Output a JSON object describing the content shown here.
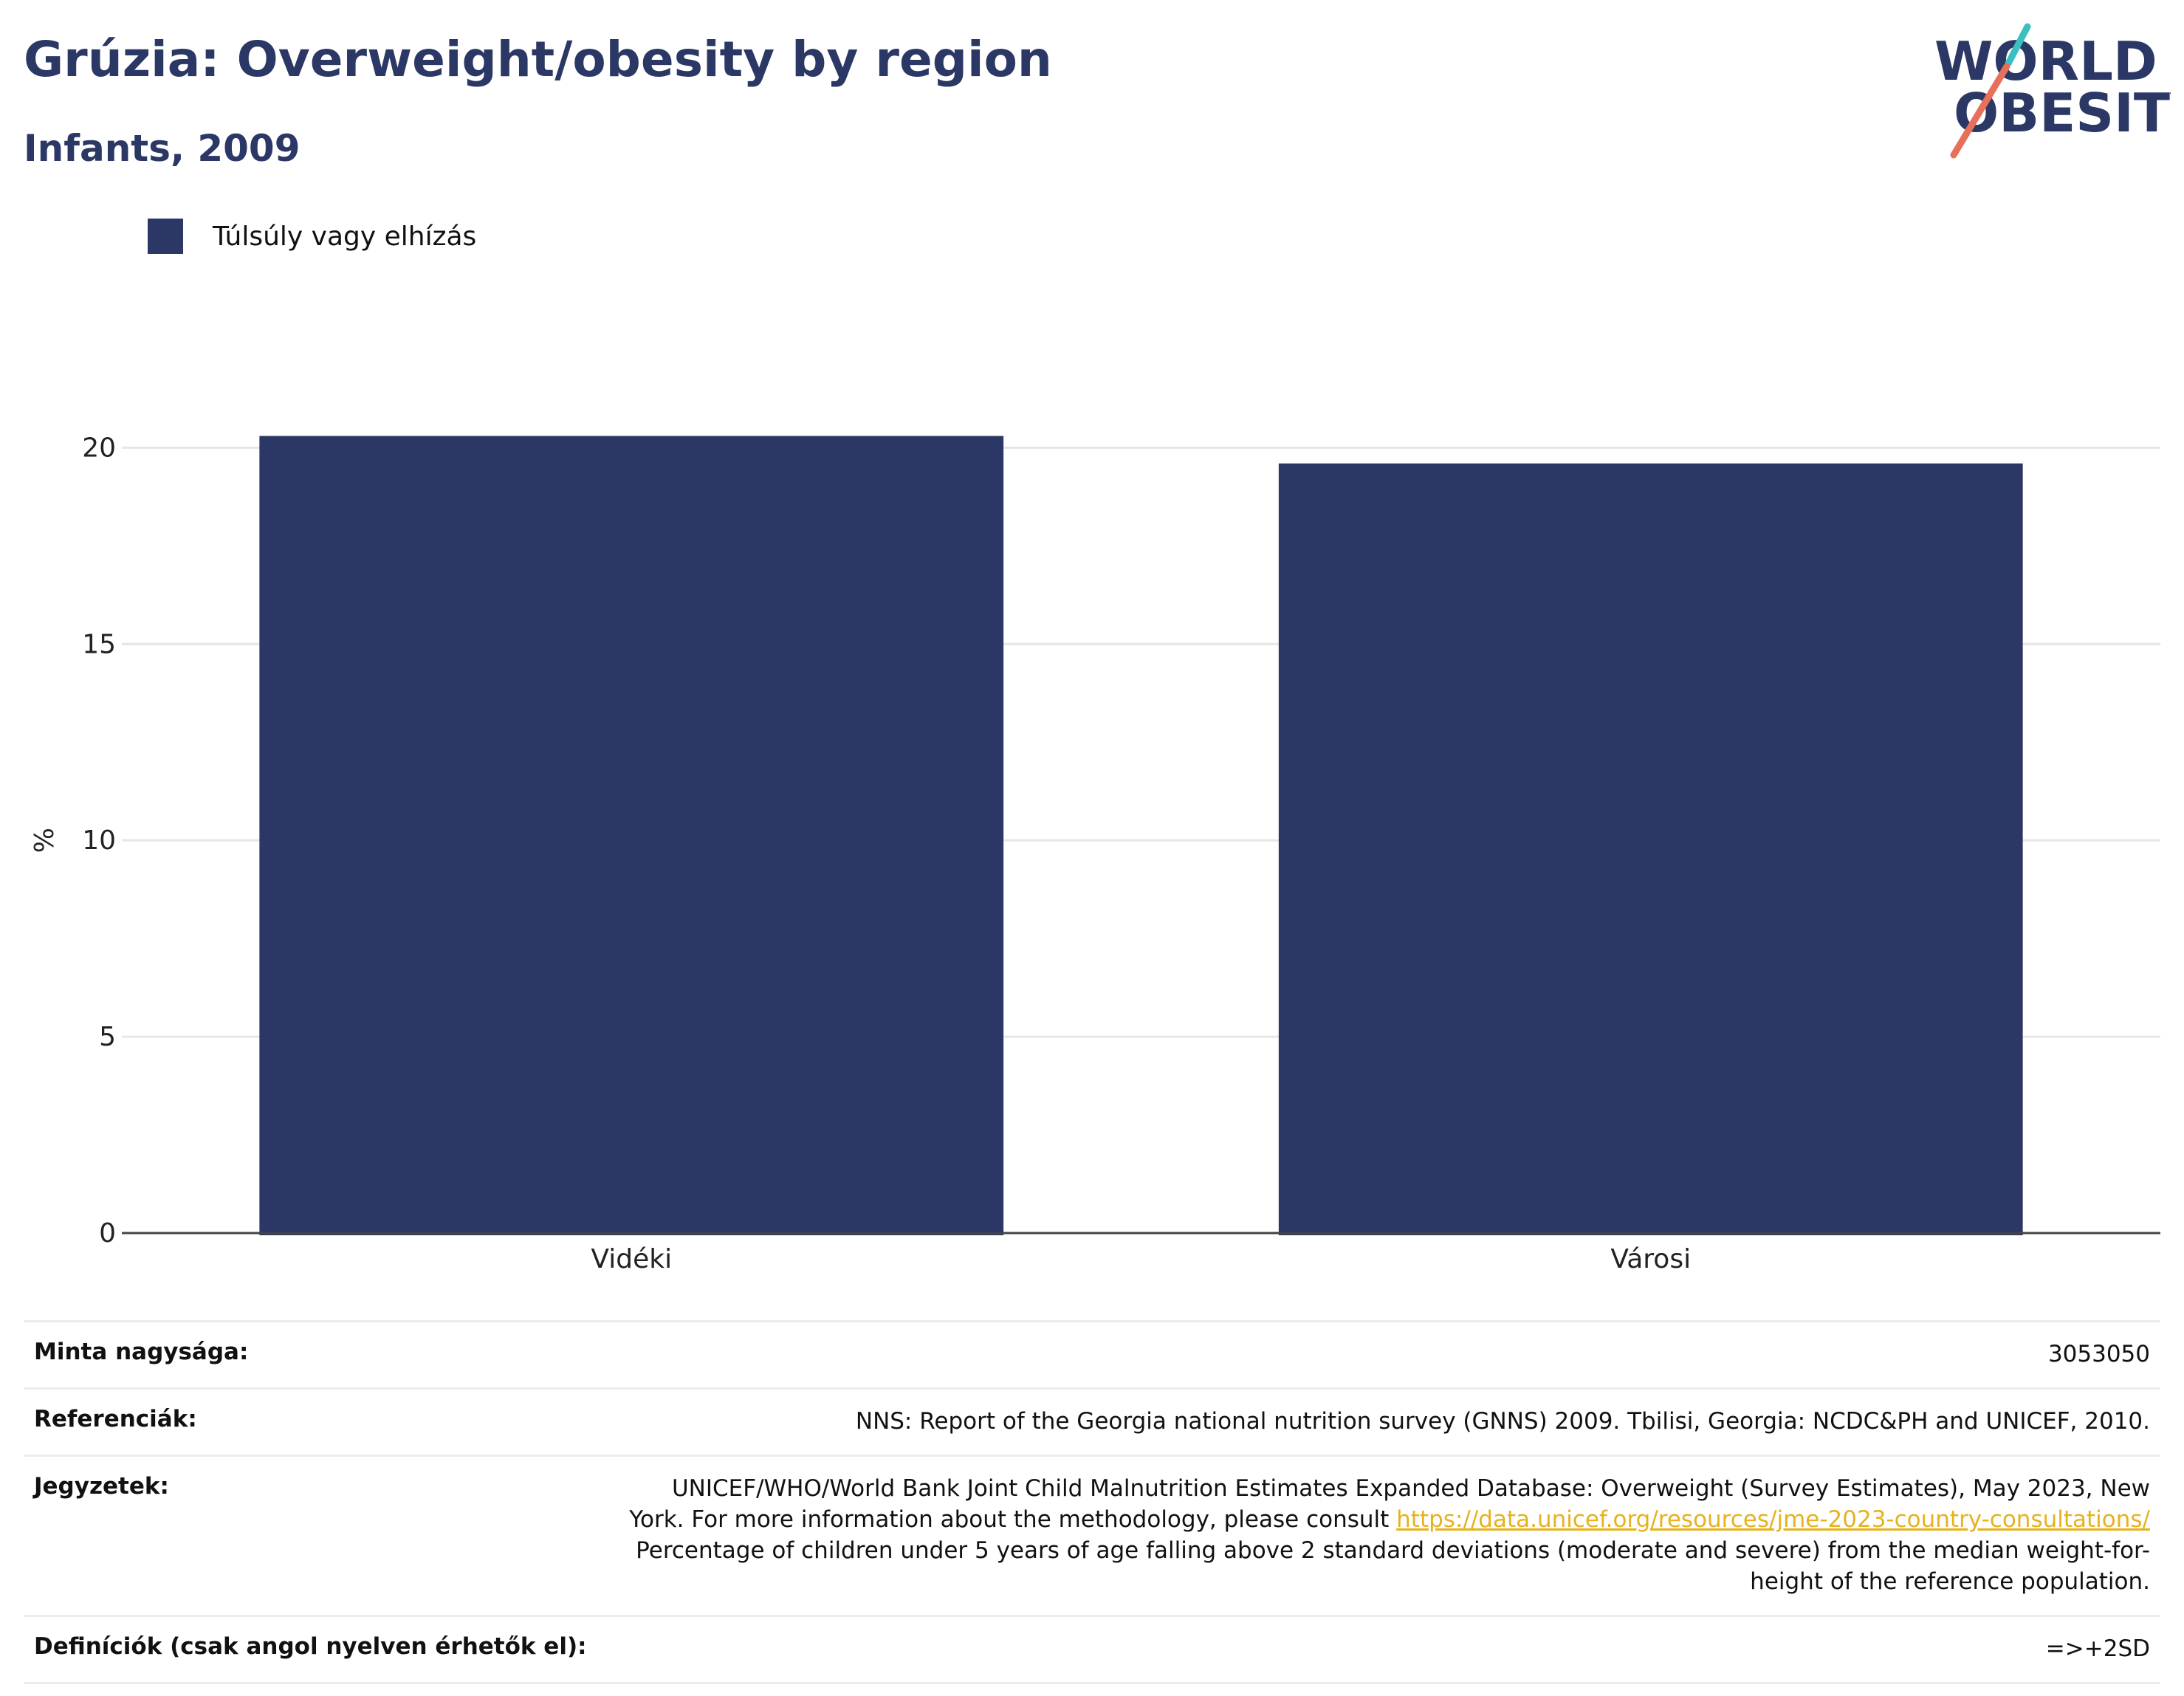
{
  "title": "Grúzia: Overweight/obesity by region",
  "subtitle": "Infants, 2009",
  "logo": {
    "line1": "WORLD",
    "line2": "OBESITY"
  },
  "colors": {
    "bar": "#2b3764",
    "title": "#2b3764",
    "link": "#e6b21e",
    "logo_teal": "#3bbfbf",
    "logo_coral": "#e8705a"
  },
  "chart_data": {
    "type": "bar",
    "categories": [
      "Vidéki",
      "Városi"
    ],
    "series": [
      {
        "name": "Túlsúly vagy elhízás",
        "values": [
          20.3,
          19.6
        ]
      }
    ],
    "ylabel": "%",
    "xlabel": "",
    "ylim": [
      0,
      22
    ],
    "yticks": [
      0,
      5,
      10,
      15,
      20
    ],
    "grid": true,
    "legend_position": "top-left"
  },
  "footer": {
    "rows": [
      {
        "label": "Minta nagysága:",
        "value": "3053050"
      },
      {
        "label": "Referenciák:",
        "value": "NNS: Report of the Georgia national nutrition survey (GNNS) 2009. Tbilisi, Georgia: NCDC&PH and UNICEF, 2010."
      },
      {
        "label": "Jegyzetek:",
        "line1": "UNICEF/WHO/World Bank Joint Child Malnutrition Estimates Expanded Database: Overweight (Survey Estimates), May 2023, New",
        "line2_prefix": "York. For more information about the methodology, please consult ",
        "link": "https://data.unicef.org/resources/jme-2023-country-consultations/",
        "line3": "Percentage of children under 5 years of age falling above 2 standard deviations (moderate and severe) from the median weight-for-",
        "line4": "height of the reference population."
      },
      {
        "label": "Definíciók (csak angol nyelven érhetők el):",
        "value": "=>+2SD"
      }
    ]
  }
}
